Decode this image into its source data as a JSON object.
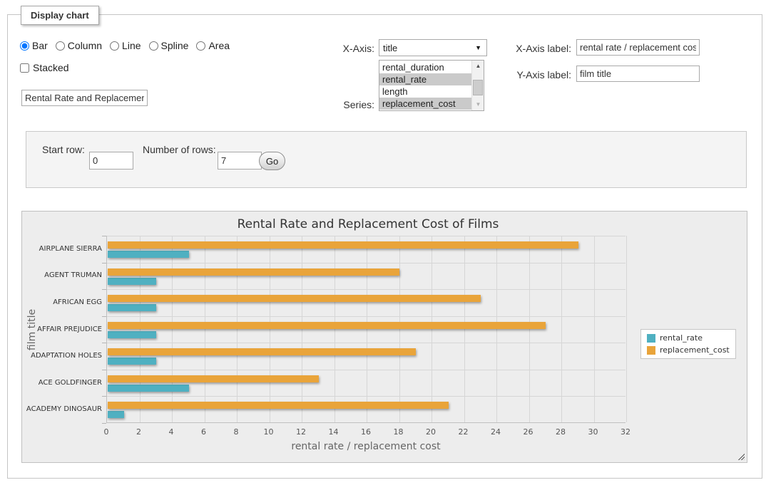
{
  "window": {
    "legend": "Display chart"
  },
  "controls": {
    "chart_types": [
      {
        "label": "Bar",
        "selected": true
      },
      {
        "label": "Column",
        "selected": false
      },
      {
        "label": "Line",
        "selected": false
      },
      {
        "label": "Spline",
        "selected": false
      },
      {
        "label": "Area",
        "selected": false
      }
    ],
    "stacked": {
      "label": "Stacked",
      "checked": false
    },
    "title_value": "Rental Rate and Replacement Cost of Films",
    "x_axis": {
      "label": "X-Axis:",
      "selected": "title"
    },
    "series_select": {
      "label": "Series:",
      "options": [
        {
          "label": "rental_duration",
          "selected": false
        },
        {
          "label": "rental_rate",
          "selected": true
        },
        {
          "label": "length",
          "selected": false
        },
        {
          "label": "replacement_cost",
          "selected": true
        }
      ]
    },
    "x_axis_label": {
      "label": "X-Axis label:",
      "value": "rental rate / replacement cost"
    },
    "y_axis_label": {
      "label": "Y-Axis label:",
      "value": "film title"
    }
  },
  "row_controls": {
    "start_row_label": "Start row:",
    "start_row_value": "0",
    "num_rows_label": "Number of rows:",
    "num_rows_value": "7",
    "go_label": "Go"
  },
  "chart_data": {
    "type": "bar",
    "title": "Rental Rate and Replacement Cost of Films",
    "categories": [
      "AIRPLANE SIERRA",
      "AGENT TRUMAN",
      "AFRICAN EGG",
      "AFFAIR PREJUDICE",
      "ADAPTATION HOLES",
      "ACE GOLDFINGER",
      "ACADEMY DINOSAUR"
    ],
    "series": [
      {
        "name": "rental_rate",
        "color": "#4FB0C1",
        "values": [
          4.99,
          2.99,
          2.99,
          2.99,
          2.99,
          4.99,
          0.99
        ]
      },
      {
        "name": "replacement_cost",
        "color": "#E9A43A",
        "values": [
          28.99,
          17.99,
          22.99,
          26.99,
          18.99,
          12.99,
          20.99
        ]
      }
    ],
    "xlabel": "rental rate / replacement cost",
    "ylabel": "film title",
    "xlim": [
      0,
      32
    ],
    "tick_interval": 2,
    "grid": true,
    "legend_position": "right"
  }
}
